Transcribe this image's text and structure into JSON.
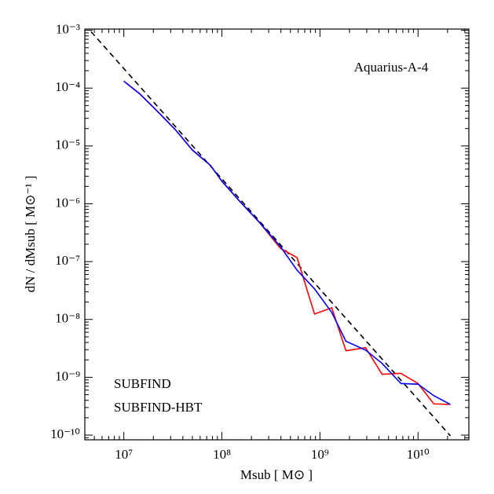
{
  "chart_data": {
    "type": "line",
    "annotation": "Aquarius-A-4",
    "xlabel": "Msub [ M⊙ ]",
    "ylabel": "dN / dMsub [ M⊙⁻¹ ]",
    "xscale": "log",
    "yscale": "log",
    "xlim": [
      4000000,
      33000000000
    ],
    "ylim": [
      0.00105,
      8.3e-11
    ],
    "xticks": [
      {
        "value": 10000000,
        "label": "10⁷"
      },
      {
        "value": 100000000,
        "label": "10⁸"
      },
      {
        "value": 1000000000,
        "label": "10⁹"
      },
      {
        "value": 10000000000,
        "label": "10¹⁰"
      }
    ],
    "yticks": [
      {
        "value": 0.001,
        "label": "10⁻³"
      },
      {
        "value": 0.0001,
        "label": "10⁻⁴"
      },
      {
        "value": 1e-05,
        "label": "10⁻⁵"
      },
      {
        "value": 1e-06,
        "label": "10⁻⁶"
      },
      {
        "value": 1e-07,
        "label": "10⁻⁷"
      },
      {
        "value": 1e-08,
        "label": "10⁻⁸"
      },
      {
        "value": 1e-09,
        "label": "10⁻⁹"
      },
      {
        "value": 1e-10,
        "label": "10⁻¹⁰"
      }
    ],
    "x": [
      10000000,
      14500000,
      21700000,
      33900000,
      50000000,
      76500000,
      100000000,
      150000000,
      239000000,
      396000000,
      585000000,
      880000000,
      1320000000,
      1840000000,
      2920000000,
      4300000000,
      6700000000,
      10000000000,
      14500000000,
      21400000000
    ],
    "series": [
      {
        "name": "SUBFIND",
        "color": "#ff0000",
        "values": [
          0.000132,
          8e-05,
          4.07e-05,
          1.87e-05,
          8.5e-06,
          4.6e-06,
          2.46e-06,
          1.13e-06,
          4.86e-07,
          1.69e-07,
          1.17e-07,
          1.24e-08,
          1.59e-08,
          2.88e-09,
          3.25e-09,
          1.13e-09,
          1.17e-09,
          7.8e-10,
          3.47e-10,
          3.4e-10
        ]
      },
      {
        "name": "SUBFIND-HBT",
        "color": "#0000ff",
        "values": [
          0.000132,
          8e-05,
          4.07e-05,
          1.87e-05,
          8.5e-06,
          4.6e-06,
          2.46e-06,
          1.13e-06,
          4.86e-07,
          1.81e-07,
          7.1e-08,
          3.38e-08,
          1.32e-08,
          4.2e-09,
          2.95e-09,
          1.74e-09,
          7.8e-10,
          7.6e-10,
          4.8e-10,
          3.4e-10
        ]
      }
    ],
    "reference_line": {
      "x": [
        4000000,
        21400000000
      ],
      "values": [
        0.00125,
        9.7e-11
      ],
      "color": "#000000",
      "dashed": true
    }
  }
}
